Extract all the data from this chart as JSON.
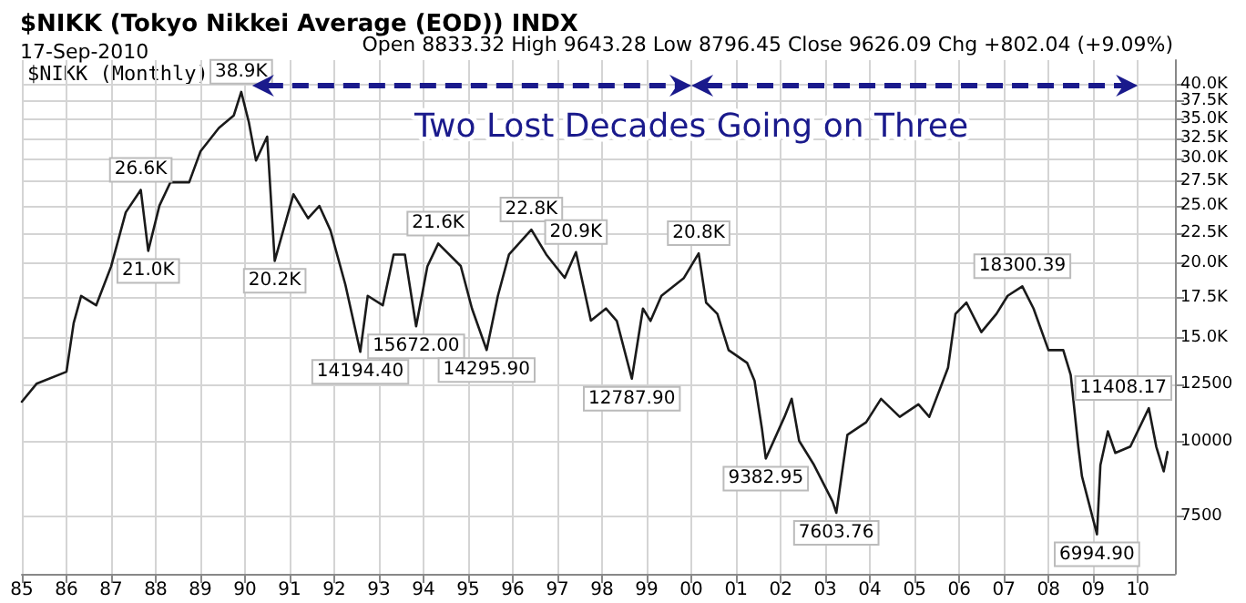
{
  "chart_data": {
    "type": "line",
    "title": "$NIKK (Tokyo Nikkei Average (EOD)) INDX",
    "subtitle": "17-Sep-2010",
    "annotations": [
      "Open 8833.32 High 9643.28 Low 8796.45 Close 9626.09 Chg +802.04 (+9.09%)",
      "$NIKK (Monthly)",
      "Two Lost Decades Going on Three",
      {
        "text": "38.9K",
        "x": "1989-12",
        "y": 38900
      },
      {
        "text": "26.6K",
        "x": "1987-09",
        "y": 26600
      },
      {
        "text": "21.0K",
        "x": "1987-11",
        "y": 21000
      },
      {
        "text": "20.2K",
        "x": "1990-09",
        "y": 20200
      },
      {
        "text": "14194.40",
        "x": "1992-08",
        "y": 14194.4
      },
      {
        "text": "15672.00",
        "x": "1993-11",
        "y": 15672
      },
      {
        "text": "21.6K",
        "x": "1994-05",
        "y": 21600
      },
      {
        "text": "14295.90",
        "x": "1995-06",
        "y": 14295.9
      },
      {
        "text": "22.8K",
        "x": "1996-06",
        "y": 22800
      },
      {
        "text": "20.9K",
        "x": "1997-06",
        "y": 20900
      },
      {
        "text": "12787.90",
        "x": "1998-09",
        "y": 12787.9
      },
      {
        "text": "20.8K",
        "x": "2000-03",
        "y": 20800
      },
      {
        "text": "9382.95",
        "x": "2001-09",
        "y": 9382.95
      },
      {
        "text": "7603.76",
        "x": "2003-04",
        "y": 7603.76
      },
      {
        "text": "18300.39",
        "x": "2007-06",
        "y": 18300.39
      },
      {
        "text": "6994.90",
        "x": "2009-02",
        "y": 6994.9
      },
      {
        "text": "11408.17",
        "x": "2010-04",
        "y": 11408.17
      }
    ],
    "x": [
      "1985-01",
      "1985-05",
      "1986-01",
      "1986-03",
      "1986-05",
      "1986-09",
      "1987-01",
      "1987-05",
      "1987-09",
      "1987-11",
      "1988-02",
      "1988-05",
      "1988-10",
      "1989-01",
      "1989-06",
      "1989-10",
      "1989-12",
      "1990-02",
      "1990-04",
      "1990-07",
      "1990-09",
      "1991-02",
      "1991-06",
      "1991-09",
      "1991-12",
      "1992-04",
      "1992-08",
      "1992-10",
      "1993-02",
      "1993-05",
      "1993-08",
      "1993-11",
      "1994-02",
      "1994-05",
      "1994-11",
      "1995-02",
      "1995-06",
      "1995-09",
      "1995-12",
      "1996-06",
      "1996-10",
      "1997-03",
      "1997-06",
      "1997-10",
      "1998-02",
      "1998-05",
      "1998-09",
      "1998-12",
      "1999-02",
      "1999-05",
      "1999-11",
      "2000-03",
      "2000-05",
      "2000-08",
      "2000-11",
      "2001-04",
      "2001-06",
      "2001-08",
      "2001-09",
      "2002-02",
      "2002-04",
      "2002-06",
      "2002-10",
      "2003-03",
      "2003-04",
      "2003-07",
      "2003-12",
      "2004-04",
      "2004-09",
      "2005-02",
      "2005-05",
      "2005-10",
      "2005-12",
      "2006-03",
      "2006-07",
      "2006-11",
      "2007-02",
      "2007-06",
      "2007-09",
      "2008-01",
      "2008-05",
      "2008-07",
      "2008-09",
      "2008-10",
      "2009-02",
      "2009-03",
      "2009-05",
      "2009-07",
      "2009-11",
      "2010-04",
      "2010-06",
      "2010-08",
      "2010-09"
    ],
    "series": [
      {
        "color": "#1a1a1a",
        "values": [
          11700,
          12540,
          13140,
          15870,
          17630,
          17000,
          19760,
          24380,
          26600,
          21000,
          25040,
          27410,
          27400,
          30870,
          33820,
          35500,
          38900,
          34600,
          29800,
          32700,
          20200,
          26150,
          23830,
          25000,
          22740,
          18420,
          14194.4,
          17640,
          17000,
          20700,
          20700,
          15672,
          19770,
          21600,
          19800,
          16790,
          14295.9,
          17640,
          20700,
          22800,
          20700,
          18910,
          20900,
          16020,
          16790,
          16000,
          12787.9,
          16790,
          16000,
          17640,
          18900,
          20800,
          17180,
          16440,
          14290,
          13600,
          12690,
          10520,
          9382.95,
          11030,
          11830,
          10050,
          9150,
          7950,
          7603.76,
          10290,
          10800,
          11830,
          11030,
          11580,
          11030,
          13340,
          16440,
          17180,
          15320,
          16440,
          17640,
          18300.39,
          16790,
          14290,
          14290,
          12980,
          9830,
          8760,
          6994.9,
          9150,
          10430,
          9590,
          9830,
          11408.17,
          9830,
          8930,
          9626.09
        ]
      }
    ],
    "xlim": [
      "1985-01",
      "2010-11"
    ],
    "ylim": [
      6000,
      44000
    ],
    "log": true,
    "grid": true,
    "marker": "none",
    "line_style": "solid",
    "xticks": [
      {
        "value": "1985",
        "label": "85"
      },
      {
        "value": "1986",
        "label": "86"
      },
      {
        "value": "1987",
        "label": "87"
      },
      {
        "value": "1988",
        "label": "88"
      },
      {
        "value": "1989",
        "label": "89"
      },
      {
        "value": "1990",
        "label": "90"
      },
      {
        "value": "1991",
        "label": "91"
      },
      {
        "value": "1992",
        "label": "92"
      },
      {
        "value": "1993",
        "label": "93"
      },
      {
        "value": "1994",
        "label": "94"
      },
      {
        "value": "1995",
        "label": "95"
      },
      {
        "value": "1996",
        "label": "96"
      },
      {
        "value": "1997",
        "label": "97"
      },
      {
        "value": "1998",
        "label": "98"
      },
      {
        "value": "1999",
        "label": "99"
      },
      {
        "value": "2000",
        "label": "00"
      },
      {
        "value": "2001",
        "label": "01"
      },
      {
        "value": "2002",
        "label": "02"
      },
      {
        "value": "2003",
        "label": "03"
      },
      {
        "value": "2004",
        "label": "04"
      },
      {
        "value": "2005",
        "label": "05"
      },
      {
        "value": "2006",
        "label": "06"
      },
      {
        "value": "2007",
        "label": "07"
      },
      {
        "value": "2008",
        "label": "08"
      },
      {
        "value": "2009",
        "label": "09"
      },
      {
        "value": "2010",
        "label": "10"
      }
    ],
    "yticks": [
      7500,
      10000,
      12500,
      {
        "value": 15000,
        "label": "15.0K"
      },
      {
        "value": 17500,
        "label": "17.5K"
      },
      {
        "value": 20000,
        "label": "20.0K"
      },
      {
        "value": 22500,
        "label": "22.5K"
      },
      {
        "value": 25000,
        "label": "25.0K"
      },
      {
        "value": 27500,
        "label": "27.5K"
      },
      {
        "value": 30000,
        "label": "30.0K"
      },
      {
        "value": 32500,
        "label": "32.5K"
      },
      {
        "value": 35000,
        "label": "35.0K"
      },
      {
        "value": 37500,
        "label": "37.5K"
      },
      {
        "value": 40000,
        "label": "40.0K"
      }
    ]
  }
}
